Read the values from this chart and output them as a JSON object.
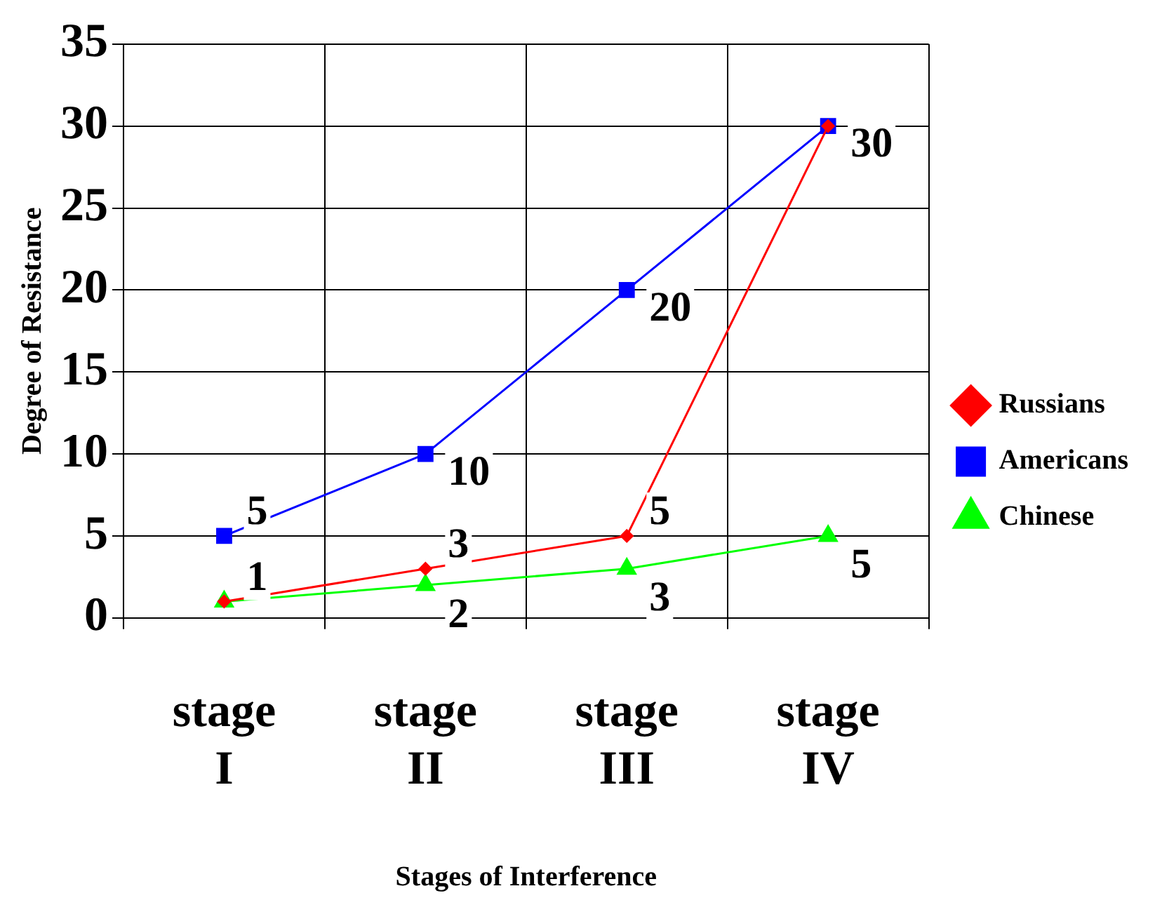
{
  "chart_data": {
    "type": "line",
    "xlabel": "Stages of Interference",
    "ylabel": "Degree of Resistance",
    "categories": [
      "stage I",
      "stage II",
      "stage III",
      "stage IV"
    ],
    "series": [
      {
        "name": "Russians",
        "color": "#ff0000",
        "marker": "diamond",
        "values": [
          1,
          3,
          5,
          30
        ],
        "value_labels": [
          "1",
          "3",
          "5",
          null
        ]
      },
      {
        "name": "Americans",
        "color": "#0000ff",
        "marker": "square",
        "values": [
          5,
          10,
          20,
          30
        ],
        "value_labels": [
          "5",
          "10",
          "20",
          "30"
        ]
      },
      {
        "name": "Chinese",
        "color": "#00ff00",
        "marker": "triangle",
        "values": [
          1,
          2,
          3,
          5
        ],
        "value_labels": [
          null,
          "2",
          "3",
          "5"
        ]
      }
    ],
    "ylim": [
      0,
      35
    ],
    "yticks": [
      0,
      5,
      10,
      15,
      20,
      25,
      30,
      35
    ],
    "grid": true,
    "legend": "right"
  }
}
